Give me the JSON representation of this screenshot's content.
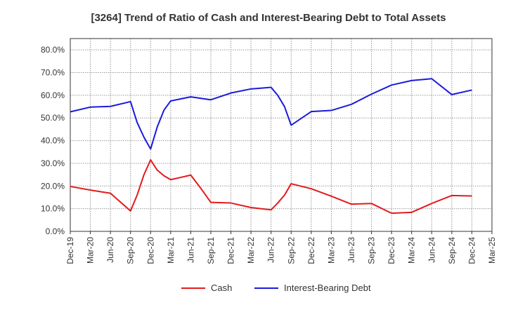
{
  "chart_data": {
    "type": "line",
    "title": "[3264]  Trend of Ratio of Cash and Interest-Bearing Debt to Total Assets",
    "xlabel": "",
    "ylabel": "",
    "ylim": [
      0,
      85
    ],
    "yticks": [
      0,
      10,
      20,
      30,
      40,
      50,
      60,
      70,
      80
    ],
    "ytick_labels": [
      "0.0%",
      "10.0%",
      "20.0%",
      "30.0%",
      "40.0%",
      "50.0%",
      "60.0%",
      "70.0%",
      "80.0%"
    ],
    "x_labels": [
      "Dec-19",
      "Mar-20",
      "Jun-20",
      "Sep-20",
      "Dec-20",
      "Mar-21",
      "Jun-21",
      "Sep-21",
      "Dec-21",
      "Mar-22",
      "Jun-22",
      "Sep-22",
      "Dec-22",
      "Mar-23",
      "Jun-23",
      "Sep-23",
      "Dec-23",
      "Mar-24",
      "Jun-24",
      "Sep-24",
      "Dec-24",
      "Mar-25"
    ],
    "grid": true,
    "legend_position": "bottom",
    "series": [
      {
        "name": "Cash",
        "color": "#e31a1c",
        "x": [
          0,
          1,
          2,
          3,
          3.33,
          3.67,
          4,
          4.33,
          4.67,
          5,
          6,
          6.5,
          7,
          8,
          9,
          10,
          10.33,
          10.67,
          11,
          12,
          13,
          14,
          15,
          16,
          17,
          18,
          19,
          20
        ],
        "values": [
          19.8,
          18.2,
          16.8,
          9.0,
          16.0,
          25.0,
          31.5,
          27.0,
          24.5,
          22.8,
          24.8,
          19.0,
          12.8,
          12.5,
          10.5,
          9.5,
          12.5,
          16.0,
          21.0,
          18.8,
          15.5,
          12.0,
          12.3,
          8.0,
          8.4,
          12.3,
          15.8,
          15.6
        ]
      },
      {
        "name": "Interest-Bearing Debt",
        "color": "#1a1adc",
        "x": [
          0,
          1,
          2,
          3,
          3.33,
          3.67,
          4,
          4.33,
          4.67,
          5,
          6,
          7,
          8,
          9,
          10,
          10.33,
          10.67,
          11,
          12,
          13,
          14,
          15,
          16,
          17,
          18,
          19,
          20
        ],
        "values": [
          52.7,
          54.8,
          55.1,
          57.2,
          48.0,
          41.5,
          36.3,
          46.0,
          53.5,
          57.5,
          59.3,
          58.0,
          61.0,
          62.8,
          63.5,
          60.0,
          55.0,
          46.8,
          52.8,
          53.3,
          56.0,
          60.5,
          64.5,
          66.5,
          67.3,
          60.3,
          62.3
        ]
      }
    ]
  }
}
